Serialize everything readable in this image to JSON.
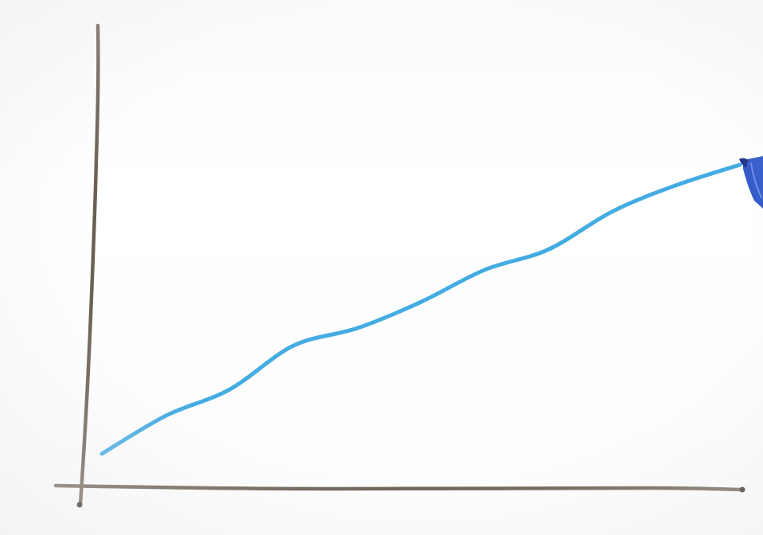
{
  "scene": {
    "description_type": "hand-drawn line graph on whiteboard",
    "axis_color": "#6b5f52",
    "trend_line_color": "#43ace2",
    "marker_body_color": "#2f57c9",
    "marker_tip_color": "#1e2f86",
    "trend": "rising"
  },
  "chart_data": {
    "type": "line",
    "series": [
      {
        "x": [
          0,
          1,
          2,
          3,
          4,
          5,
          6,
          7,
          8,
          9,
          10
        ],
        "values": [
          0.0,
          1.3,
          2.2,
          3.7,
          4.3,
          5.2,
          6.3,
          7.0,
          8.3,
          9.2,
          9.9
        ]
      }
    ],
    "xlim": [
      0,
      10
    ],
    "ylim": [
      0,
      12
    ],
    "grid": false
  }
}
